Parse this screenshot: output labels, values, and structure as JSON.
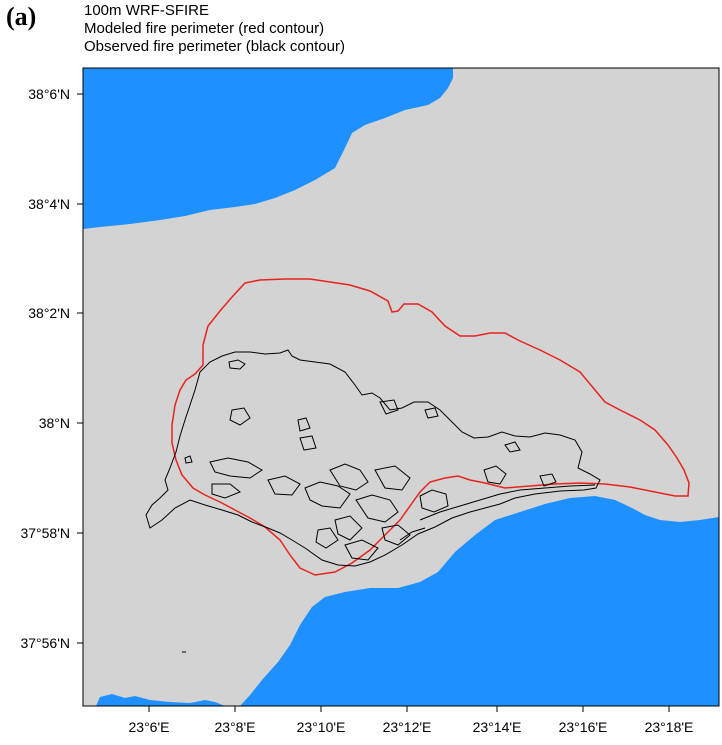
{
  "panel_label": "(a)",
  "title_lines": [
    "100m WRF-SFIRE",
    "Modeled fire perimeter (red contour)",
    "Observed fire perimeter (black contour)"
  ],
  "colors": {
    "land": "#d3d3d3",
    "sea": "#1e90ff",
    "modeled_perimeter": "#e8231e",
    "observed_perimeter": "#000000"
  },
  "map": {
    "lon_ticks": [
      "23°6'E",
      "23°8'E",
      "23°10'E",
      "23°12'E",
      "23°14'E",
      "23°16'E",
      "23°18'E"
    ],
    "lat_ticks": [
      "38°6'N",
      "38°4'N",
      "38°2'N",
      "38°N",
      "37°58'N",
      "37°56'N"
    ],
    "layers": [
      "land",
      "sea",
      "modeled fire perimeter",
      "observed fire perimeter"
    ]
  }
}
